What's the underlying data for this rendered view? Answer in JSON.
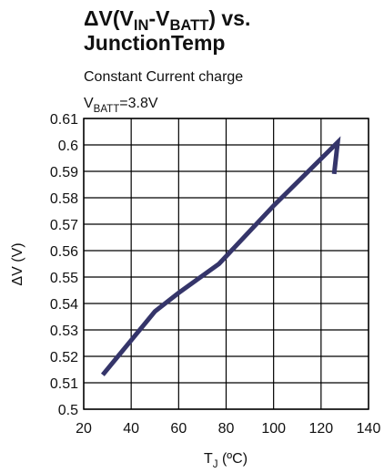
{
  "chart_data": {
    "type": "line",
    "title": [
      [
        "ΔV(V",
        "IN",
        "-V",
        "BATT",
        ") vs."
      ],
      [
        "JunctionTemp"
      ]
    ],
    "subtitle": "Constant Current charge",
    "annotation": [
      "V",
      "BATT",
      "=3.8V"
    ],
    "xlabel": [
      "T",
      "J",
      " (ºC)"
    ],
    "ylabel": "ΔV (V)",
    "x": [
      28,
      50,
      60,
      77,
      100,
      127,
      125.5
    ],
    "values": [
      0.513,
      0.537,
      0.544,
      0.555,
      0.577,
      0.601,
      0.589
    ],
    "color": "#35356a",
    "xlim": [
      20,
      140
    ],
    "xticks": [
      20,
      40,
      60,
      80,
      100,
      120,
      140
    ],
    "ylim": [
      0.5,
      0.61
    ],
    "yticks": [
      0.5,
      0.51,
      0.52,
      0.53,
      0.54,
      0.55,
      0.56,
      0.57,
      0.58,
      0.59,
      0.6,
      0.61
    ],
    "grid": true
  }
}
